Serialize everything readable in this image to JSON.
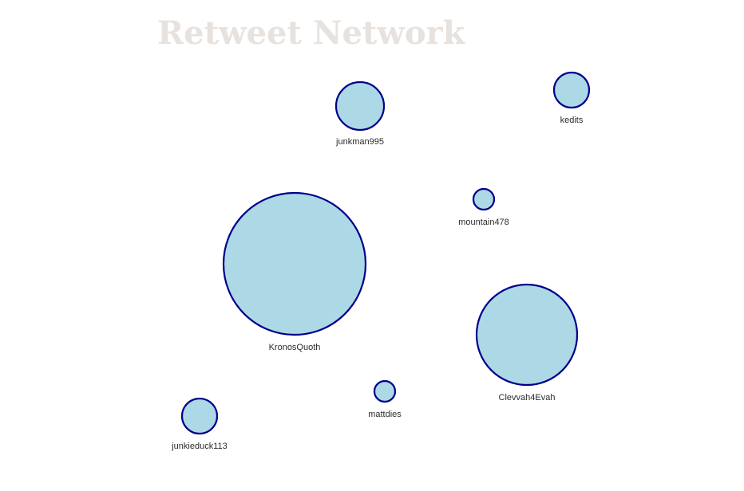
{
  "title": "Retweet Network",
  "colors": {
    "title": "#e8e2de",
    "node_fill": "#add8e6",
    "node_stroke": "#00008b",
    "label": "#2b2b2b"
  },
  "nodes": [
    {
      "id": "junkman995",
      "label": "junkman995"
    },
    {
      "id": "kedits",
      "label": "kedits"
    },
    {
      "id": "mountain478",
      "label": "mountain478"
    },
    {
      "id": "KronosQuoth",
      "label": "KronosQuoth"
    },
    {
      "id": "Clevvah4Evah",
      "label": "Clevvah4Evah"
    },
    {
      "id": "mattdies",
      "label": "mattdies"
    },
    {
      "id": "junkieduck113",
      "label": "junkieduck113"
    }
  ]
}
